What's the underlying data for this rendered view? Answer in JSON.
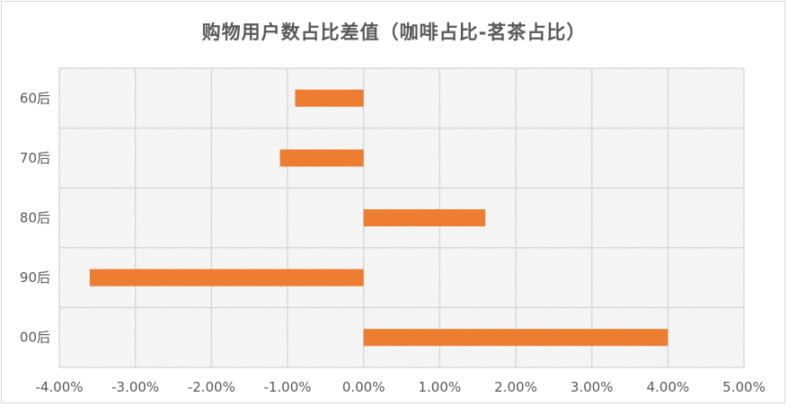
{
  "chart_data": {
    "type": "bar",
    "orientation": "horizontal",
    "title": "购物用户数占比差值（咖啡占比-茗茶占比）",
    "categories": [
      "60后",
      "70后",
      "80后",
      "90后",
      "00后"
    ],
    "values": [
      -0.9,
      -1.1,
      1.6,
      -3.6,
      4.0
    ],
    "value_unit": "%",
    "xlim": [
      -4.0,
      5.0
    ],
    "x_ticks": [
      "-4.00%",
      "-3.00%",
      "-2.00%",
      "-1.00%",
      "0.00%",
      "1.00%",
      "2.00%",
      "3.00%",
      "4.00%",
      "5.00%"
    ],
    "grid": true,
    "legend": "none",
    "colors": {
      "bar": "#ed7d31",
      "grid": "#d9d9d9",
      "text": "#595959"
    }
  }
}
